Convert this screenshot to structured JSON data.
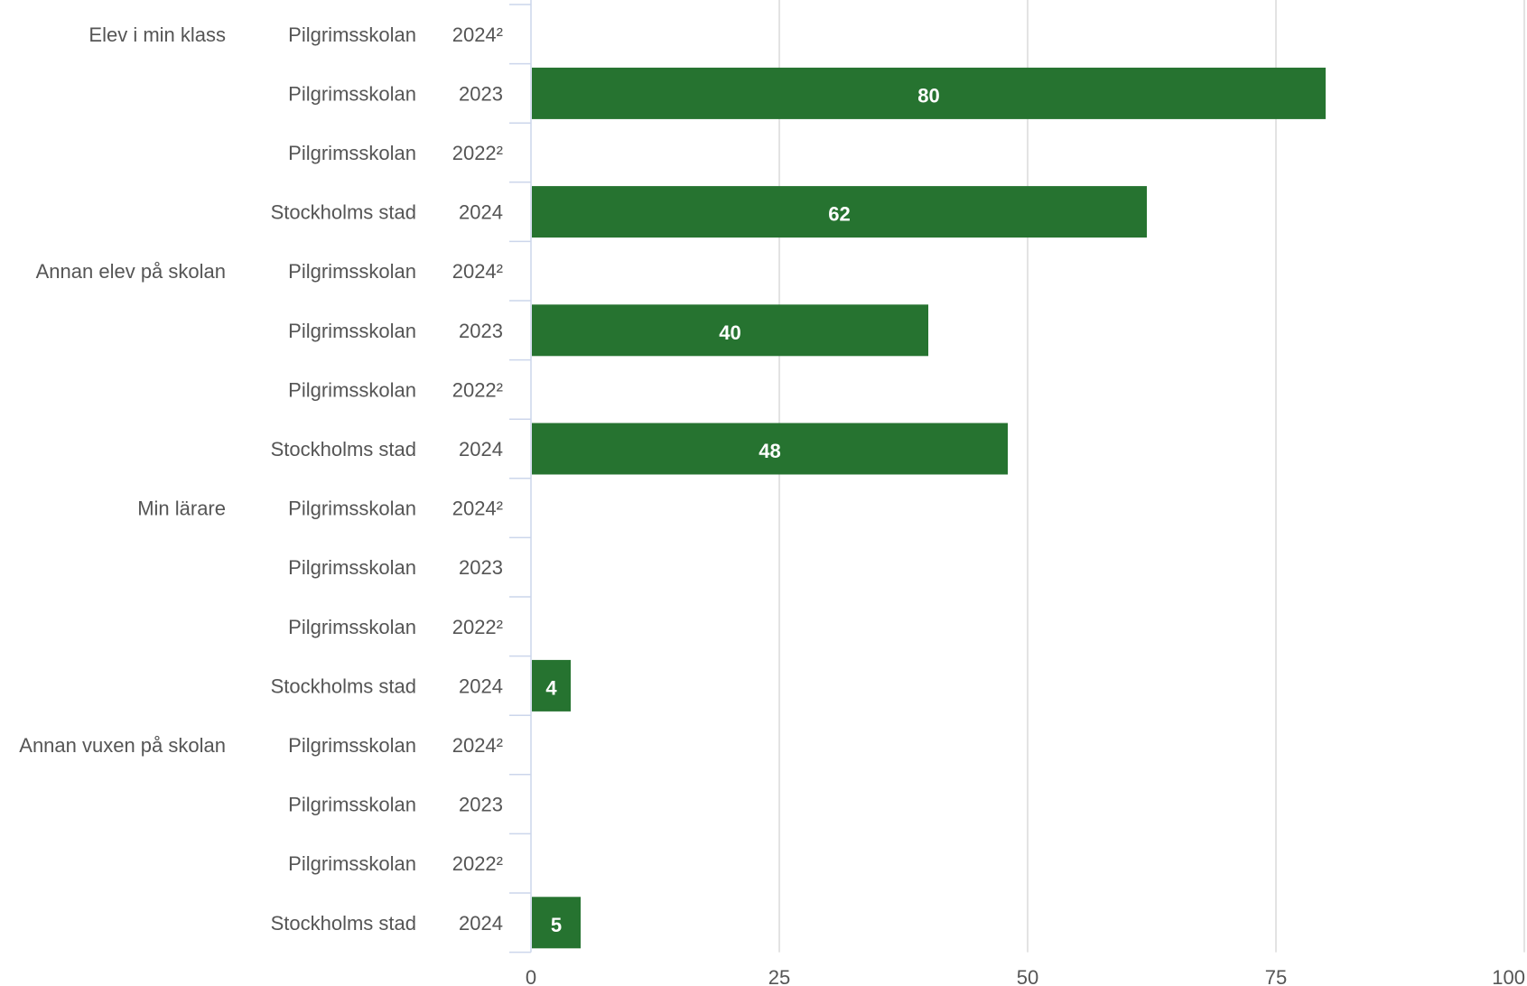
{
  "chart_data": {
    "type": "bar",
    "orientation": "horizontal",
    "xlim": [
      0,
      100
    ],
    "xticks": [
      "0",
      "25",
      "50",
      "75",
      "100"
    ],
    "grid": true,
    "bar_color": "#267330",
    "groups": [
      "Elev i min klass",
      "Annan elev på skolan",
      "Min lärare",
      "Annan vuxen på skolan"
    ],
    "rows": [
      {
        "group": "Elev i min klass",
        "unit": "Pilgrimsskolan",
        "year": "2024²",
        "value": null
      },
      {
        "group": "Elev i min klass",
        "unit": "Pilgrimsskolan",
        "year": "2023",
        "value": 80
      },
      {
        "group": "Elev i min klass",
        "unit": "Pilgrimsskolan",
        "year": "2022²",
        "value": null
      },
      {
        "group": "Elev i min klass",
        "unit": "Stockholms stad",
        "year": "2024",
        "value": 62
      },
      {
        "group": "Annan elev på skolan",
        "unit": "Pilgrimsskolan",
        "year": "2024²",
        "value": null
      },
      {
        "group": "Annan elev på skolan",
        "unit": "Pilgrimsskolan",
        "year": "2023",
        "value": 40
      },
      {
        "group": "Annan elev på skolan",
        "unit": "Pilgrimsskolan",
        "year": "2022²",
        "value": null
      },
      {
        "group": "Annan elev på skolan",
        "unit": "Stockholms stad",
        "year": "2024",
        "value": 48
      },
      {
        "group": "Min lärare",
        "unit": "Pilgrimsskolan",
        "year": "2024²",
        "value": null
      },
      {
        "group": "Min lärare",
        "unit": "Pilgrimsskolan",
        "year": "2023",
        "value": null
      },
      {
        "group": "Min lärare",
        "unit": "Pilgrimsskolan",
        "year": "2022²",
        "value": null
      },
      {
        "group": "Min lärare",
        "unit": "Stockholms stad",
        "year": "2024",
        "value": 4
      },
      {
        "group": "Annan vuxen på skolan",
        "unit": "Pilgrimsskolan",
        "year": "2024²",
        "value": null
      },
      {
        "group": "Annan vuxen på skolan",
        "unit": "Pilgrimsskolan",
        "year": "2023",
        "value": null
      },
      {
        "group": "Annan vuxen på skolan",
        "unit": "Pilgrimsskolan",
        "year": "2022²",
        "value": null
      },
      {
        "group": "Annan vuxen på skolan",
        "unit": "Stockholms stad",
        "year": "2024",
        "value": 5
      }
    ]
  }
}
